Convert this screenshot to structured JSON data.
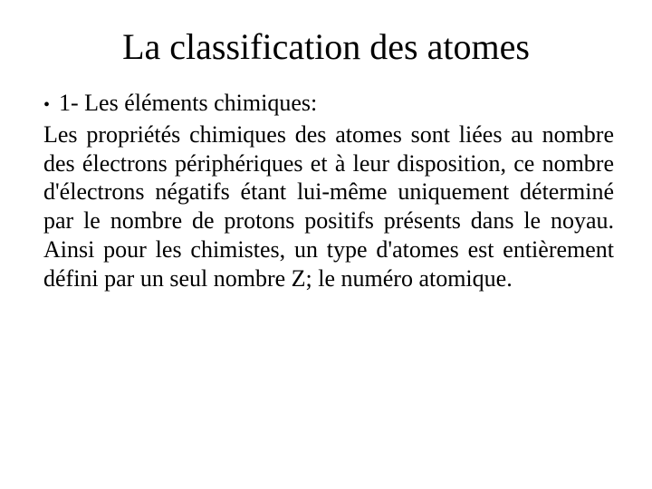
{
  "slide": {
    "title": "La classification des atomes",
    "bullet": {
      "marker": "•",
      "text": "1- Les éléments chimiques:"
    },
    "body": "Les propriétés chimiques des atomes sont liées au nombre des électrons périphériques et à leur disposition, ce nombre d'électrons négatifs étant lui-même uniquement déterminé par le nombre de protons positifs présents dans le noyau. Ainsi pour les chimistes, un type d'atomes est entièrement défini par un seul nombre Z; le numéro atomique."
  },
  "style": {
    "background_color": "#ffffff",
    "text_color": "#000000",
    "font_family": "Times New Roman",
    "title_fontsize": 40,
    "body_fontsize": 26,
    "title_weight": "normal",
    "body_align": "justify"
  }
}
